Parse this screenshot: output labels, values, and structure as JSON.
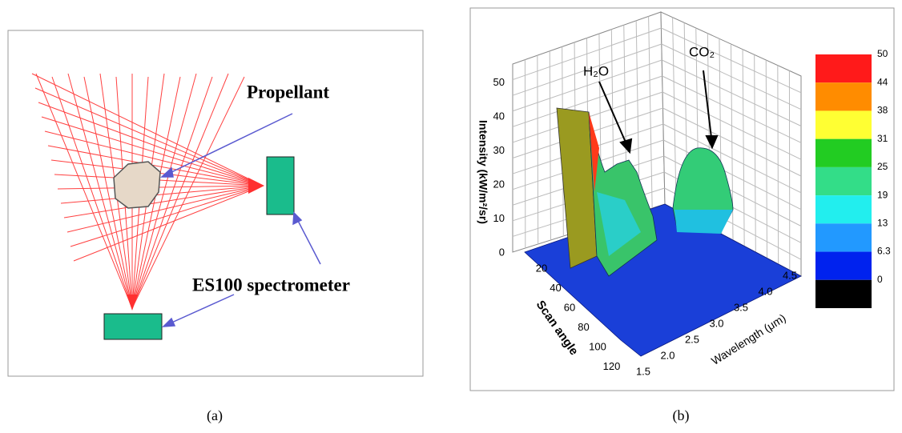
{
  "panel_a": {
    "propellant": "Propellant",
    "spectrometer": "ES100 spectrometer",
    "caption": "(a)"
  },
  "panel_b": {
    "caption": "(b)",
    "annotations": [
      "H₂O",
      "CO₂"
    ],
    "z_label": "Intensity (kW/m²/sr)",
    "z_ticks": [
      "0",
      "10",
      "20",
      "30",
      "40",
      "50"
    ],
    "y_label": "Scan angle",
    "y_ticks": [
      "20",
      "40",
      "60",
      "80",
      "100",
      "120"
    ],
    "x_label": "Wavelength (μm)",
    "x_ticks": [
      "1.5",
      "2.0",
      "2.5",
      "3.0",
      "3.5",
      "4.0",
      "4.5"
    ],
    "colorbar": [
      {
        "label": "50",
        "color": "#ff1a1a"
      },
      {
        "label": "44",
        "color": "#ff8c00"
      },
      {
        "label": "38",
        "color": "#ffff33"
      },
      {
        "label": "31",
        "color": "#22cc22"
      },
      {
        "label": "25",
        "color": "#33dd88"
      },
      {
        "label": "19",
        "color": "#22eeee"
      },
      {
        "label": "13",
        "color": "#2299ff"
      },
      {
        "label": "6.3",
        "color": "#0022ee"
      },
      {
        "label": "0",
        "color": "#000000"
      }
    ]
  }
}
